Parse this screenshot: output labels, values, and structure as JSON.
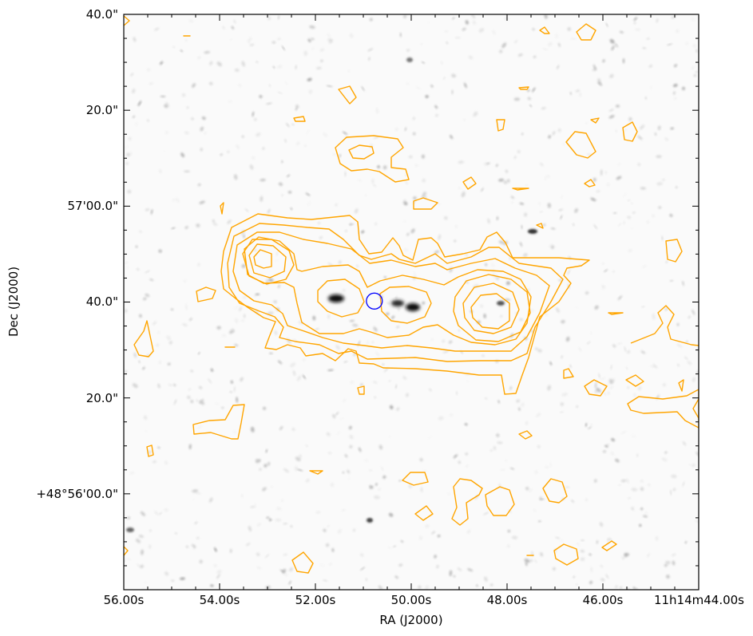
{
  "chart_data": {
    "type": "contour",
    "background": "greyscale optical image with sparse faint sources",
    "xlabel": "RA (J2000)",
    "ylabel": "Dec (J2000)",
    "x_ticks": [
      "56.00s",
      "54.00s",
      "52.00s",
      "50.00s",
      "48.00s",
      "46.00s",
      "11h14m44.00s"
    ],
    "y_ticks": [
      "40.0\"",
      "20.0\"",
      "57'00.0\"",
      "40.0\"",
      "20.0\"",
      "+48°56'00.0\""
    ],
    "x_tick_seconds": [
      56,
      54,
      52,
      50,
      48,
      46,
      44
    ],
    "y_tick_arcsec": [
      100,
      80,
      60,
      40,
      20,
      0
    ],
    "x_range_seconds": [
      56,
      44
    ],
    "y_range_arcsec": [
      -20,
      100
    ],
    "contour_color": "#FFA500",
    "marker": {
      "shape": "circle",
      "color": "#0000FF",
      "ra_seconds": 50.77,
      "dec_arcsec": 40.2
    },
    "grid": false,
    "legend": "none"
  }
}
